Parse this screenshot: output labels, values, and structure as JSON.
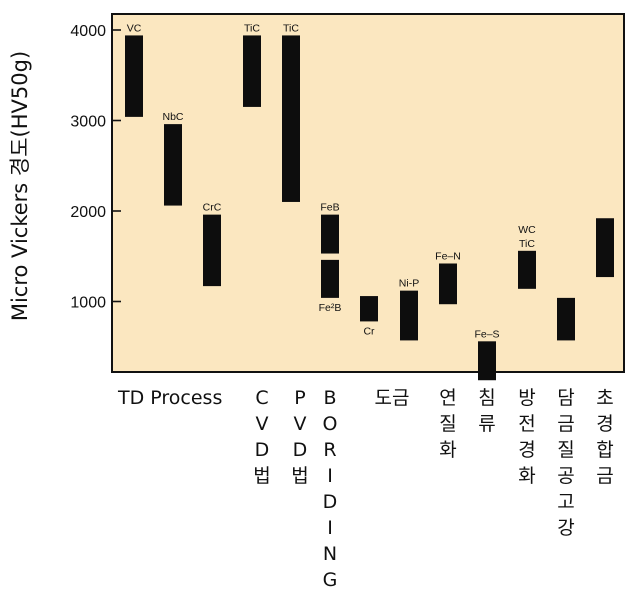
{
  "chart_data": {
    "type": "bar",
    "ylabel": "Micro Vickers 경도(HV50g)",
    "ylim": [
      130,
      4150
    ],
    "yticks": [
      1000,
      2000,
      3000,
      4000
    ],
    "grid": false,
    "background_color": "#fbe7c0",
    "bar_color": "#0d0d0d",
    "categories": [
      {
        "label": "TD Process",
        "vertical": false
      },
      {
        "label": "CVD법",
        "vertical": true
      },
      {
        "label": "PVD법",
        "vertical": true
      },
      {
        "label": "BORIDING",
        "vertical": true
      },
      {
        "label": "도금",
        "vertical": false
      },
      {
        "label": "연질화",
        "vertical": true
      },
      {
        "label": "침류",
        "vertical": true
      },
      {
        "label": "방전경화",
        "vertical": true
      },
      {
        "label": "담금질공고강",
        "vertical": true
      },
      {
        "label": "초경합금",
        "vertical": true
      }
    ],
    "series": [
      {
        "label": "VC",
        "label_pos": "top",
        "category": 0,
        "slot": 0,
        "low": 3040,
        "high": 3940
      },
      {
        "label": "NbC",
        "label_pos": "top",
        "category": 0,
        "slot": 1,
        "low": 2060,
        "high": 2960
      },
      {
        "label": "CrC",
        "label_pos": "top",
        "category": 0,
        "slot": 2,
        "low": 1170,
        "high": 1960
      },
      {
        "label": "TiC",
        "label_pos": "top",
        "category": 1,
        "slot": 0,
        "low": 3150,
        "high": 3940
      },
      {
        "label": "TiC",
        "label_pos": "top",
        "category": 2,
        "slot": 0,
        "low": 2100,
        "high": 3940
      },
      {
        "label": "FeB",
        "label_pos": "top",
        "category": 3,
        "slot": 0,
        "low": 1530,
        "high": 1960
      },
      {
        "label": "Fe²B",
        "label_pos": "bottom",
        "category": 3,
        "slot": 0,
        "low": 1040,
        "high": 1460
      },
      {
        "label": "Cr",
        "label_pos": "bottom",
        "category": 4,
        "slot": 0,
        "low": 780,
        "high": 1060
      },
      {
        "label": "Ni-P",
        "label_pos": "top",
        "category": 4,
        "slot": 1,
        "low": 570,
        "high": 1120
      },
      {
        "label": "Fe–N",
        "label_pos": "top",
        "category": 5,
        "slot": 0,
        "low": 970,
        "high": 1420
      },
      {
        "label": "Fe–S",
        "label_pos": "top",
        "category": 6,
        "slot": 0,
        "low": 130,
        "high": 560
      },
      {
        "label": "WC",
        "label_pos": "top2",
        "category": 7,
        "slot": 0,
        "low": 1140,
        "high": 1560
      },
      {
        "label": "TiC",
        "label_pos": "top",
        "category": 7,
        "slot": 0,
        "low": 1140,
        "high": 1560
      },
      {
        "label": "",
        "label_pos": "none",
        "category": 8,
        "slot": 0,
        "low": 570,
        "high": 1040
      },
      {
        "label": "",
        "label_pos": "none",
        "category": 9,
        "slot": 0,
        "low": 1270,
        "high": 1920
      }
    ]
  }
}
